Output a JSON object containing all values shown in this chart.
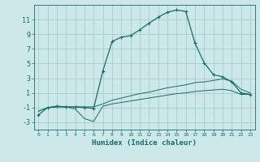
{
  "xlabel": "Humidex (Indice chaleur)",
  "bg_color": "#cce8e8",
  "grid_color": "#aacccc",
  "line_color": "#1a6b6b",
  "x_data": [
    0,
    1,
    2,
    3,
    4,
    5,
    6,
    7,
    8,
    9,
    10,
    11,
    12,
    13,
    14,
    15,
    16,
    17,
    18,
    19,
    20,
    21,
    22,
    23
  ],
  "humidex_data": [
    -2.0,
    -1.0,
    -0.8,
    -0.9,
    -0.9,
    -1.0,
    -1.1,
    4.0,
    8.0,
    8.6,
    8.8,
    9.6,
    10.5,
    11.3,
    12.0,
    12.3,
    12.1,
    7.8,
    5.1,
    3.5,
    3.2,
    2.5,
    1.0,
    0.8
  ],
  "temp_data": [
    -1.5,
    -1.0,
    -0.9,
    -0.9,
    -0.9,
    -0.9,
    -0.9,
    -0.5,
    0.0,
    0.3,
    0.6,
    0.9,
    1.1,
    1.4,
    1.7,
    1.9,
    2.1,
    2.4,
    2.5,
    2.7,
    2.9,
    2.6,
    1.5,
    1.0
  ],
  "dew_data": [
    -1.5,
    -1.0,
    -0.9,
    -0.9,
    -1.2,
    -2.5,
    -2.9,
    -0.8,
    -0.5,
    -0.3,
    -0.1,
    0.1,
    0.3,
    0.5,
    0.7,
    0.9,
    1.0,
    1.2,
    1.3,
    1.4,
    1.5,
    1.3,
    0.8,
    0.8
  ],
  "ylim": [
    -4,
    13
  ],
  "yticks": [
    -3,
    -1,
    1,
    3,
    5,
    7,
    9,
    11
  ],
  "xlim": [
    -0.5,
    23.5
  ],
  "xlabel_fontsize": 6.5,
  "tick_fontsize_x": 4.5,
  "tick_fontsize_y": 6.0
}
